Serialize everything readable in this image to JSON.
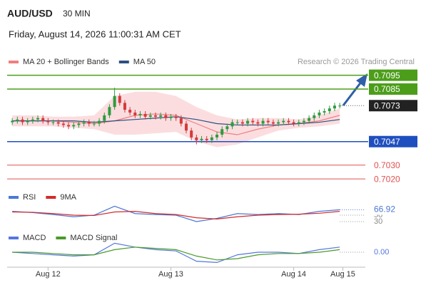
{
  "header": {
    "symbol": "AUD/USD",
    "interval": "30 MIN",
    "timestamp": "Friday, August 14, 2026 11:00:31 AM CET",
    "credit": "Research © 2026 Trading Central"
  },
  "chart_data": [
    {
      "type": "candlestick",
      "xlim": [
        -8,
        62
      ],
      "ylim": [
        0.7018,
        0.7102
      ],
      "xticks": [
        {
          "value": 0,
          "label": "Aug 12"
        },
        {
          "value": 24,
          "label": "Aug 13"
        },
        {
          "value": 48,
          "label": "Aug 14"
        },
        {
          "value": 57.6,
          "label": "Aug 15"
        }
      ],
      "up_color": "#2e9b3e",
      "down_color": "#d43a3a",
      "x": [
        -7,
        -6,
        -5,
        -4,
        -3,
        -2,
        -1,
        0,
        1,
        2,
        3,
        4,
        5,
        6,
        7,
        8,
        9,
        10,
        11,
        12,
        13,
        14,
        15,
        16,
        17,
        18,
        19,
        20,
        21,
        22,
        23,
        24,
        25,
        26,
        27,
        28,
        29,
        30,
        31,
        32,
        33,
        34,
        35,
        36,
        37,
        38,
        39,
        40,
        41,
        42,
        43,
        44,
        45,
        46,
        47,
        48,
        49,
        50,
        51,
        52,
        53,
        54,
        55,
        56,
        57
      ],
      "open": [
        0.7061,
        0.7062,
        0.7063,
        0.7061,
        0.7062,
        0.7063,
        0.7064,
        0.7062,
        0.7061,
        0.7061,
        0.706,
        0.7059,
        0.7058,
        0.7059,
        0.706,
        0.7061,
        0.706,
        0.706,
        0.7062,
        0.7066,
        0.7072,
        0.708,
        0.7075,
        0.707,
        0.7068,
        0.7066,
        0.7067,
        0.7065,
        0.7066,
        0.7065,
        0.7066,
        0.7064,
        0.7065,
        0.7064,
        0.706,
        0.7055,
        0.705,
        0.7048,
        0.7049,
        0.7048,
        0.705,
        0.7052,
        0.7056,
        0.7058,
        0.7061,
        0.7061,
        0.706,
        0.7062,
        0.7061,
        0.706,
        0.7062,
        0.7061,
        0.706,
        0.7061,
        0.7062,
        0.7061,
        0.706,
        0.7061,
        0.7062,
        0.7064,
        0.7066,
        0.7068,
        0.7069,
        0.7071,
        0.7073
      ],
      "high": [
        0.7064,
        0.7065,
        0.7065,
        0.7064,
        0.7065,
        0.7066,
        0.7066,
        0.7064,
        0.7063,
        0.7063,
        0.7062,
        0.7061,
        0.7061,
        0.7062,
        0.7063,
        0.7063,
        0.7062,
        0.7064,
        0.7068,
        0.7074,
        0.7086,
        0.7082,
        0.7077,
        0.7072,
        0.707,
        0.7069,
        0.7069,
        0.7068,
        0.7068,
        0.7068,
        0.7068,
        0.7067,
        0.7067,
        0.7066,
        0.7062,
        0.7057,
        0.7052,
        0.7051,
        0.7051,
        0.7052,
        0.7054,
        0.7058,
        0.706,
        0.7063,
        0.7063,
        0.7063,
        0.7064,
        0.7064,
        0.7063,
        0.7064,
        0.7064,
        0.7063,
        0.7063,
        0.7064,
        0.7064,
        0.7063,
        0.7063,
        0.7064,
        0.7066,
        0.7068,
        0.707,
        0.7071,
        0.7073,
        0.7075,
        0.7075
      ],
      "low": [
        0.7059,
        0.706,
        0.7059,
        0.7059,
        0.706,
        0.7061,
        0.706,
        0.7059,
        0.7059,
        0.7058,
        0.7057,
        0.7056,
        0.7056,
        0.7057,
        0.7058,
        0.7058,
        0.7058,
        0.7058,
        0.706,
        0.7064,
        0.707,
        0.7073,
        0.7068,
        0.7066,
        0.7064,
        0.7064,
        0.7063,
        0.7063,
        0.7063,
        0.7063,
        0.7062,
        0.7062,
        0.7062,
        0.7058,
        0.7053,
        0.7048,
        0.7045,
        0.7046,
        0.7046,
        0.7046,
        0.7048,
        0.705,
        0.7054,
        0.7056,
        0.7059,
        0.7058,
        0.7058,
        0.7059,
        0.7058,
        0.7058,
        0.7059,
        0.7058,
        0.7058,
        0.7059,
        0.7059,
        0.7058,
        0.7058,
        0.7059,
        0.706,
        0.7062,
        0.7064,
        0.7066,
        0.7067,
        0.7069,
        0.7071
      ],
      "close": [
        0.7062,
        0.7063,
        0.7061,
        0.7062,
        0.7063,
        0.7064,
        0.7062,
        0.7061,
        0.7061,
        0.706,
        0.7059,
        0.7058,
        0.7059,
        0.706,
        0.7061,
        0.706,
        0.706,
        0.7062,
        0.7066,
        0.7072,
        0.708,
        0.7075,
        0.707,
        0.7068,
        0.7066,
        0.7067,
        0.7065,
        0.7066,
        0.7065,
        0.7066,
        0.7064,
        0.7065,
        0.7064,
        0.706,
        0.7055,
        0.705,
        0.7048,
        0.7049,
        0.7048,
        0.705,
        0.7052,
        0.7056,
        0.7058,
        0.7061,
        0.7061,
        0.706,
        0.7062,
        0.7061,
        0.706,
        0.7062,
        0.7061,
        0.706,
        0.7061,
        0.7062,
        0.7061,
        0.706,
        0.7061,
        0.7062,
        0.7064,
        0.7066,
        0.7068,
        0.7069,
        0.7071,
        0.7073,
        0.7073
      ],
      "overlays": {
        "x": [
          -7,
          -3,
          1,
          5,
          9,
          13,
          17,
          21,
          25,
          29,
          33,
          37,
          41,
          45,
          49,
          53,
          57
        ],
        "series": [
          {
            "name": "MA 20 + Bollinger Bands",
            "color": "#f07f7f",
            "band_color": "#fbdde0",
            "values": [
              0.7062,
              0.7062,
              0.7062,
              0.7061,
              0.706,
              0.7062,
              0.7066,
              0.7067,
              0.7066,
              0.706,
              0.7054,
              0.7052,
              0.7056,
              0.7059,
              0.706,
              0.7062,
              0.7066
            ],
            "upper": [
              0.7066,
              0.7066,
              0.7065,
              0.7065,
              0.7066,
              0.708,
              0.7083,
              0.7083,
              0.708,
              0.7072,
              0.7066,
              0.7063,
              0.7064,
              0.7064,
              0.7063,
              0.7066,
              0.7071
            ],
            "lower": [
              0.7058,
              0.7058,
              0.7058,
              0.7057,
              0.7056,
              0.7052,
              0.7052,
              0.7053,
              0.7054,
              0.7047,
              0.7043,
              0.7045,
              0.705,
              0.7055,
              0.7057,
              0.7058,
              0.706
            ]
          },
          {
            "name": "MA 50",
            "color": "#2d4f80",
            "values": [
              0.7062,
              0.7062,
              0.7062,
              0.7062,
              0.7061,
              0.7062,
              0.7063,
              0.7064,
              0.7065,
              0.7063,
              0.706,
              0.7059,
              0.7059,
              0.7059,
              0.706,
              0.7061,
              0.7063
            ]
          }
        ]
      },
      "levels": [
        {
          "value": 0.7095,
          "color": "#4c9e1a",
          "box": true,
          "line": "solid"
        },
        {
          "value": 0.7085,
          "color": "#4c9e1a",
          "box": true,
          "line": "solid"
        },
        {
          "value": 0.7073,
          "color": "#222222",
          "box": true,
          "line": "dotted"
        },
        {
          "value": 0.7047,
          "color": "#1f4fbf",
          "box": true,
          "line": "solid"
        },
        {
          "value": 0.703,
          "label": "0.7030",
          "color": "#e05050",
          "box": false,
          "line": "solid"
        },
        {
          "value": 0.702,
          "label": "0.7020",
          "color": "#e05050",
          "box": false,
          "line": "solid"
        }
      ]
    },
    {
      "type": "line",
      "xlim": [
        -8,
        62
      ],
      "ylim": [
        10,
        90
      ],
      "yticks": [
        50,
        30
      ],
      "x": [
        -7,
        -3,
        1,
        5,
        9,
        13,
        17,
        21,
        25,
        29,
        33,
        37,
        41,
        45,
        49,
        53,
        57
      ],
      "series": [
        {
          "name": "RSI",
          "color": "#4b78d6",
          "values": [
            62,
            58,
            52,
            45,
            50,
            78,
            55,
            52,
            50,
            30,
            40,
            55,
            52,
            55,
            52,
            62,
            66.92
          ]
        },
        {
          "name": "9MA",
          "color": "#d42a2a",
          "values": [
            60,
            59,
            55,
            50,
            49,
            60,
            62,
            55,
            52,
            42,
            38,
            45,
            50,
            52,
            53,
            56,
            62
          ]
        }
      ]
    },
    {
      "type": "line",
      "xlim": [
        -8,
        62
      ],
      "ylim": [
        -0.001,
        0.001
      ],
      "yticks": [
        {
          "value": 0,
          "label": "0.00"
        }
      ],
      "x": [
        -7,
        -3,
        1,
        5,
        9,
        13,
        17,
        21,
        25,
        29,
        33,
        37,
        41,
        45,
        49,
        53,
        57
      ],
      "series": [
        {
          "name": "MACD",
          "color": "#5577dd",
          "values": [
            0,
            -0.0001,
            -0.0002,
            -0.0003,
            -0.0002,
            0.0007,
            0.0004,
            0.0002,
            0.0001,
            -0.0007,
            -0.0008,
            -0.0002,
            0,
            0,
            -0.0001,
            0.0002,
            0.0004
          ]
        },
        {
          "name": "MACD Signal",
          "color": "#4a9a2a",
          "values": [
            0,
            0,
            -0.0001,
            -0.0002,
            -0.0002,
            0.0002,
            0.0004,
            0.0003,
            0.0002,
            -0.0003,
            -0.0006,
            -0.0005,
            -0.0002,
            -0.0001,
            -0.0001,
            0,
            0.0002
          ]
        }
      ]
    }
  ]
}
